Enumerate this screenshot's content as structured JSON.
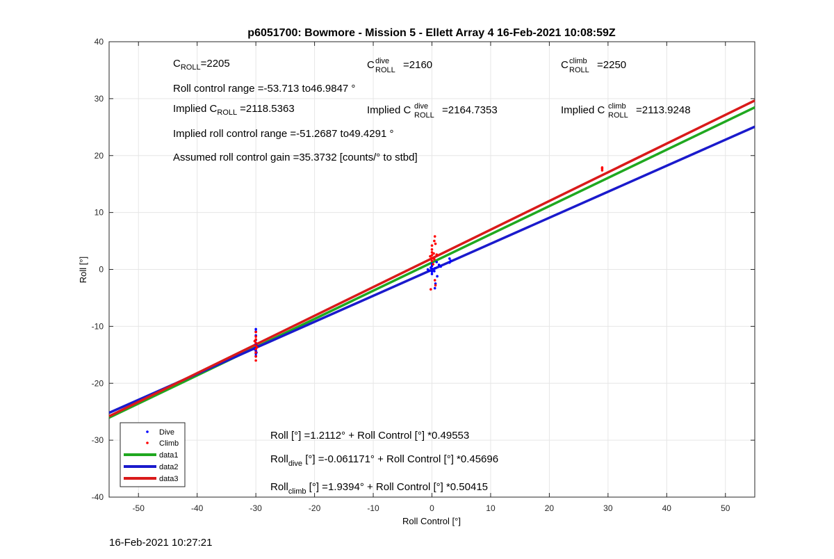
{
  "footer_timestamp": "16-Feb-2021 10:27:21",
  "chart_data": {
    "type": "scatter",
    "title": "p6051700: Bowmore - Mission 5 - Ellett Array 4 16-Feb-2021 10:08:59Z",
    "xlabel": "Roll Control [°]",
    "ylabel": "Roll [°]",
    "xlim": [
      -55,
      55
    ],
    "ylim": [
      -40,
      40
    ],
    "xticks": [
      -50,
      -40,
      -30,
      -20,
      -10,
      0,
      10,
      20,
      30,
      40,
      50
    ],
    "yticks": [
      -40,
      -30,
      -20,
      -10,
      0,
      10,
      20,
      30,
      40
    ],
    "grid": true,
    "legend_position": "bottom-left",
    "colors": {
      "dive": "#0000ff",
      "climb": "#ff0000",
      "data1": "#1fa81f",
      "data2": "#1a1acc",
      "data3": "#d91a1a"
    },
    "series": [
      {
        "name": "Dive",
        "kind": "points",
        "color": "#0000ff",
        "points": [
          [
            -30,
            -10.5
          ],
          [
            -30,
            -10.9
          ],
          [
            -30,
            -11.6
          ],
          [
            -30,
            -12.4
          ],
          [
            -30,
            -13.1
          ],
          [
            -30,
            -13.8
          ],
          [
            -30,
            -14.3
          ],
          [
            -30,
            -14.8
          ],
          [
            -30,
            -15.2
          ],
          [
            -30.2,
            -14.0
          ],
          [
            -29.8,
            -13.5
          ],
          [
            -29.9,
            -14.6
          ],
          [
            0,
            0.1
          ],
          [
            0,
            -0.4
          ],
          [
            0,
            0.6
          ],
          [
            0,
            1.0
          ],
          [
            0,
            -0.8
          ],
          [
            0.5,
            0.2
          ],
          [
            0.4,
            -0.3
          ],
          [
            0.8,
            1.3
          ],
          [
            0.9,
            -1.2
          ],
          [
            0.6,
            -2.5
          ],
          [
            0.5,
            -3.3
          ],
          [
            -0.2,
            0.3
          ],
          [
            -0.5,
            -0.2
          ],
          [
            -0.7,
            0.0
          ],
          [
            3,
            1.2
          ],
          [
            3,
            1.9
          ],
          [
            3.2,
            1.5
          ],
          [
            1.5,
            0.5
          ],
          [
            1.2,
            0.8
          ]
        ]
      },
      {
        "name": "Climb",
        "kind": "points",
        "color": "#ff0000",
        "points": [
          [
            -30,
            -11.0
          ],
          [
            -30,
            -11.8
          ],
          [
            -30,
            -12.3
          ],
          [
            -30,
            -12.9
          ],
          [
            -30,
            -13.4
          ],
          [
            -30,
            -14.0
          ],
          [
            -30,
            -14.6
          ],
          [
            -30,
            -15.3
          ],
          [
            -30,
            -16.0
          ],
          [
            -30.2,
            -12.6
          ],
          [
            -29.8,
            -13.7
          ],
          [
            0,
            1.5
          ],
          [
            0,
            2.0
          ],
          [
            0,
            2.5
          ],
          [
            0,
            3.0
          ],
          [
            0,
            3.5
          ],
          [
            0,
            4.2
          ],
          [
            0.3,
            2.8
          ],
          [
            0.4,
            1.8
          ],
          [
            0.5,
            5.8
          ],
          [
            0.4,
            5.0
          ],
          [
            0.6,
            4.5
          ],
          [
            -0.3,
            2.3
          ],
          [
            0.8,
            2.6
          ],
          [
            0.5,
            -1.9
          ],
          [
            0.6,
            -2.8
          ],
          [
            -0.2,
            -3.5
          ],
          [
            0.2,
            0.9
          ],
          [
            29,
            17.4
          ],
          [
            29,
            17.7
          ],
          [
            29,
            17.9
          ]
        ]
      },
      {
        "name": "data1",
        "kind": "line",
        "color": "#1fa81f",
        "intercept": 1.2112,
        "slope": 0.49553
      },
      {
        "name": "data2",
        "kind": "line",
        "color": "#1a1acc",
        "intercept": -0.061171,
        "slope": 0.45696
      },
      {
        "name": "data3",
        "kind": "line",
        "color": "#d91a1a",
        "intercept": 1.9394,
        "slope": 0.50415
      }
    ],
    "annotations": {
      "c_roll": {
        "base": "C",
        "sub": "ROLL",
        "value": "=2205"
      },
      "c_roll_dive": {
        "base": "C",
        "sup": "dive",
        "sub": "ROLL",
        "value": "=2160"
      },
      "c_roll_climb": {
        "base": "C",
        "sup": "climb",
        "sub": "ROLL",
        "value": "=2250"
      },
      "roll_control_range": "Roll control range =-53.713 to46.9847 °",
      "implied_c_roll": {
        "prefix": "Implied ",
        "base": "C",
        "sub": "ROLL",
        "value": "=2118.5363"
      },
      "implied_c_roll_dive": {
        "prefix": "Implied ",
        "base": "C",
        "sup": "dive",
        "sub": "ROLL",
        "value": "=2164.7353"
      },
      "implied_c_roll_climb": {
        "prefix": "Implied ",
        "base": "C",
        "sup": "climb",
        "sub": "ROLL",
        "value": "=2113.9248"
      },
      "implied_range": "Implied roll control range =-51.2687 to49.4291 °",
      "assumed_gain": "Assumed roll control gain =35.3732 [counts/° to stbd]",
      "fit_all": "Roll [°] =1.2112° + Roll Control [°] *0.49553",
      "fit_dive": {
        "base": "Roll",
        "sub": "dive",
        "rest": " [°] =-0.061171° + Roll Control [°] *0.45696"
      },
      "fit_climb": {
        "base": "Roll",
        "sub": "climb",
        "rest": " [°] =1.9394° + Roll Control [°] *0.50415"
      }
    }
  }
}
